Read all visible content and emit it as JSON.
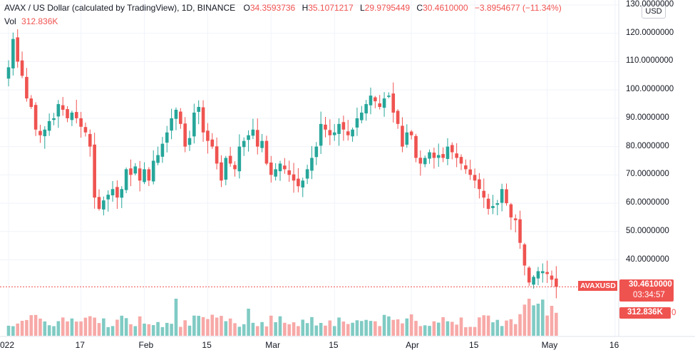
{
  "header": {
    "title": "AVAX / US Dollar (calculated by TradingView), 1D, BINANCE",
    "open_label": "O",
    "open": "34.3593736",
    "high_label": "H",
    "high": "35.1071217",
    "low_label": "L",
    "low": "29.9795449",
    "close_label": "C",
    "close": "30.4610000",
    "change": "−3.8954677 (−11.34%)",
    "vol_label": "Vol",
    "vol_value": "312.836K"
  },
  "currency_button": "USD",
  "price_axis_labels": [
    "130.0000000",
    "120.0000000",
    "110.0000000",
    "100.0000000",
    "90.0000000",
    "80.0000000",
    "70.0000000",
    "60.0000000",
    "50.0000000",
    "40.0000000"
  ],
  "time_axis_labels": [
    "022",
    "17",
    "Feb",
    "15",
    "Mar",
    "15",
    "Apr",
    "15",
    "May",
    "16"
  ],
  "tags": {
    "symbol": "AVAXUSD",
    "last_price": "30.4610000",
    "countdown": "03:34:57",
    "volume": "312.836K",
    "axis_partial": "0"
  },
  "colors": {
    "up": "#26a69a",
    "down": "#ef5350",
    "vol_up": "#80cbc4",
    "vol_down": "#f7a9a7",
    "grid": "#f0f3fa"
  },
  "chart_data": {
    "type": "candlestick",
    "symbol": "AVAXUSD",
    "interval": "1D",
    "y_range": [
      18,
      131
    ],
    "y_ticks": [
      40,
      50,
      60,
      70,
      80,
      90,
      100,
      110,
      120,
      130
    ],
    "last_price": 30.461,
    "x_labels": [
      {
        "index": 0,
        "text": "022"
      },
      {
        "index": 16,
        "text": "17"
      },
      {
        "index": 30,
        "text": "Feb"
      },
      {
        "index": 44,
        "text": "15"
      },
      {
        "index": 58,
        "text": "Mar"
      },
      {
        "index": 72,
        "text": "15"
      },
      {
        "index": 89,
        "text": "Apr"
      },
      {
        "index": 103,
        "text": "15"
      },
      {
        "index": 119,
        "text": "May"
      },
      {
        "index": 134,
        "text": "16"
      }
    ],
    "closes": [
      108,
      118,
      110,
      105,
      97,
      94,
      86,
      84,
      86,
      89,
      90,
      95,
      93,
      90,
      92,
      90,
      87,
      85,
      80,
      62,
      58,
      61,
      63,
      65,
      62,
      65,
      72,
      70,
      73,
      68,
      72,
      68,
      75,
      77,
      81,
      85,
      90,
      93,
      88,
      80,
      83,
      92,
      94,
      85,
      82,
      80,
      74,
      68,
      76,
      74,
      72,
      80,
      82,
      84,
      86,
      80,
      82,
      74,
      70,
      72,
      74,
      72,
      70,
      68,
      66,
      68,
      72,
      76,
      80,
      88,
      86,
      84,
      85,
      88,
      86,
      84,
      86,
      90,
      92,
      95,
      98,
      96,
      94,
      97,
      98,
      92,
      88,
      80,
      85,
      84,
      76,
      74,
      76,
      78,
      76,
      77,
      76,
      80,
      78,
      76,
      74,
      72,
      70,
      68,
      65,
      62,
      58,
      59,
      60,
      65,
      60,
      55,
      54,
      46,
      38,
      32,
      34,
      36,
      36,
      35,
      33,
      30.5
    ]
  }
}
